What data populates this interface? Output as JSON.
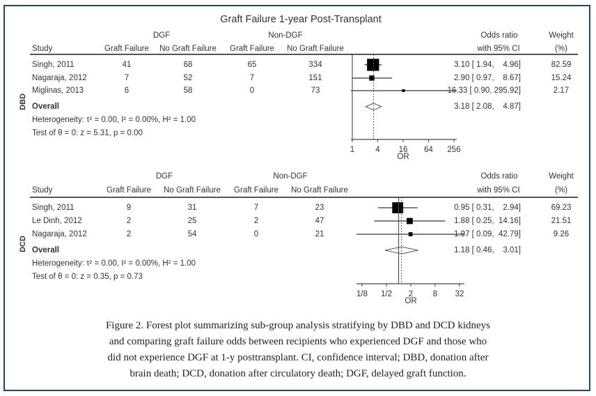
{
  "chart_data": {
    "type": "forest",
    "title": "Graft Failure 1-year Post-Transplant",
    "xlabel": "OR",
    "scale": "log2",
    "columns": {
      "study": "Study",
      "group1": "DGF",
      "group2": "Non-DGF",
      "event": "Graft Failure",
      "nonevent": "No Graft Failure",
      "or_line1": "Odds ratio",
      "or_line2": "with 95% CI",
      "weight_line1": "Weight",
      "weight_line2": "(%)"
    },
    "panels": [
      {
        "subgroup": "DBD",
        "xticks": [
          "1",
          "4",
          "16",
          "64",
          "256"
        ],
        "xtick_values": [
          1,
          4,
          16,
          64,
          256
        ],
        "xlim": [
          1,
          256
        ],
        "studies": [
          {
            "name": "Singh, 2011",
            "dgf_gf": "41",
            "dgf_ngf": "68",
            "non_gf": "65",
            "non_ngf": "334",
            "or": 3.1,
            "lo": 1.94,
            "hi": 4.96,
            "ci_text": "3.10 [ 1.94,    4.96]",
            "weight": "82.59"
          },
          {
            "name": "Nagaraja, 2012",
            "dgf_gf": "7",
            "dgf_ngf": "52",
            "non_gf": "7",
            "non_ngf": "151",
            "or": 2.9,
            "lo": 0.97,
            "hi": 8.67,
            "ci_text": "2.90 [ 0.97,    8.67]",
            "weight": "15.24"
          },
          {
            "name": "Miglinas, 2013",
            "dgf_gf": "6",
            "dgf_ngf": "58",
            "non_gf": "0",
            "non_ngf": "73",
            "or": 16.33,
            "lo": 0.9,
            "hi": 295.92,
            "ci_text": "16.33 [ 0.90, 295.92]",
            "weight": "2.17"
          }
        ],
        "overall": {
          "label": "Overall",
          "or": 3.18,
          "lo": 2.08,
          "hi": 4.87,
          "ci_text": "3.18 [ 2.08,    4.87]"
        },
        "heterogeneity": "Heterogeneity: τ² = 0.00, I² = 0.00%, H² = 1.00",
        "test": "Test of θ = 0: z = 5.31, p = 0.00"
      },
      {
        "subgroup": "DCD",
        "xticks": [
          "1/8",
          "1/2",
          "2",
          "8",
          "32"
        ],
        "xtick_values": [
          0.125,
          0.5,
          2,
          8,
          32
        ],
        "xlim": [
          0.11,
          40
        ],
        "studies": [
          {
            "name": "Singh, 2011",
            "dgf_gf": "9",
            "dgf_ngf": "31",
            "non_gf": "7",
            "non_ngf": "23",
            "or": 0.95,
            "lo": 0.31,
            "hi": 2.94,
            "ci_text": "0.95 [ 0.31,    2.94]",
            "weight": "69.23"
          },
          {
            "name": "Le Dinh, 2012",
            "dgf_gf": "2",
            "dgf_ngf": "25",
            "non_gf": "2",
            "non_ngf": "47",
            "or": 1.88,
            "lo": 0.25,
            "hi": 14.16,
            "ci_text": "1.88 [ 0.25,  14.16]",
            "weight": "21.51"
          },
          {
            "name": "Nagaraja, 2012",
            "dgf_gf": "2",
            "dgf_ngf": "54",
            "non_gf": "0",
            "non_ngf": "21",
            "or": 1.97,
            "lo": 0.09,
            "hi": 42.79,
            "ci_text": "1.97 [ 0.09,  42.79]",
            "weight": "9.26"
          }
        ],
        "overall": {
          "label": "Overall",
          "or": 1.18,
          "lo": 0.46,
          "hi": 3.01,
          "ci_text": "1.18 [ 0.46,    3.01]"
        },
        "heterogeneity": "Heterogeneity: τ² = 0.00, I² = 0.00%, H² = 1.00",
        "test": "Test of θ = 0: z = 0.35, p = 0.73"
      }
    ]
  },
  "caption": [
    "Figure 2. Forest plot summarizing sub-group analysis stratifying by DBD and DCD kidneys",
    "and comparing graft failure odds between recipients who experienced DGF and those who",
    "did not experience DGF at 1-y posttransplant. CI, confidence interval; DBD, donation after",
    "brain death; DCD, donation after circulatory death; DGF, delayed graft function."
  ]
}
